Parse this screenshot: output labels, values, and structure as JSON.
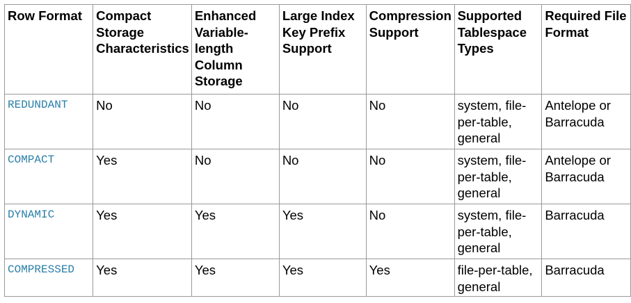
{
  "table": {
    "headers": [
      "Row Format",
      "Compact Storage Characteristics",
      "Enhanced Variable-length Column Storage",
      "Large Index Key Prefix Support",
      "Compression Support",
      "Supported Tablespace Types",
      "Required File Format"
    ],
    "rows": [
      [
        "REDUNDANT",
        "No",
        "No",
        "No",
        "No",
        "system, file-per-table, general",
        "Antelope or Barracuda"
      ],
      [
        "COMPACT",
        "Yes",
        "No",
        "No",
        "No",
        "system, file-per-table, general",
        "Antelope or Barracuda"
      ],
      [
        "DYNAMIC",
        "Yes",
        "Yes",
        "Yes",
        "No",
        "system, file-per-table, general",
        "Barracuda"
      ],
      [
        "COMPRESSED",
        "Yes",
        "Yes",
        "Yes",
        "Yes",
        "file-per-table, general",
        "Barracuda"
      ]
    ],
    "colors": {
      "row_format_text": "#2a7fa8",
      "border": "#999999"
    }
  }
}
